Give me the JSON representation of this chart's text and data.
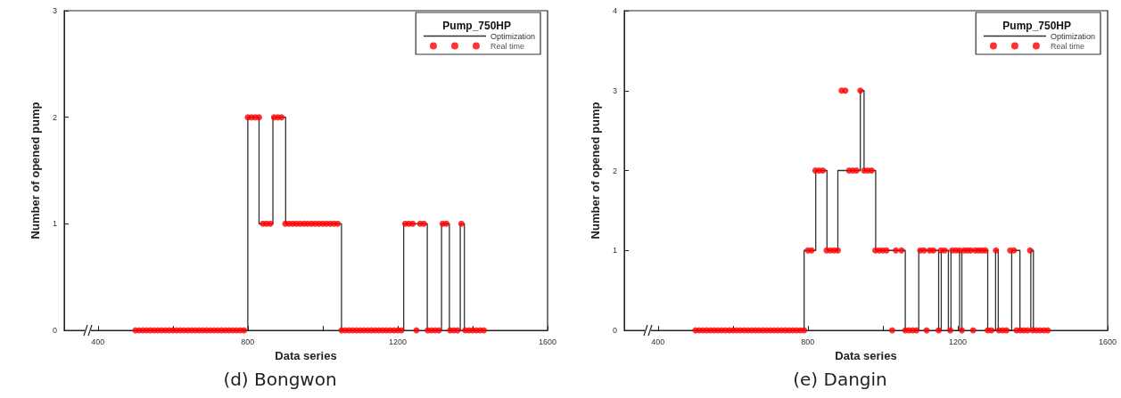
{
  "chart_data": [
    {
      "type": "line",
      "title": "(d) Bongwon",
      "xlabel": "Data series",
      "ylabel": "Number of opened pump",
      "legend_title": "Pump_750HP",
      "legend": "top right",
      "grid": false,
      "xlim": [
        310,
        1600
      ],
      "xticks": [
        400,
        {
          "value": 600,
          "label": null
        },
        800,
        {
          "value": 1000,
          "label": null
        },
        1200,
        {
          "value": 1400,
          "label": null
        },
        1600
      ],
      "ylim": [
        0,
        3
      ],
      "yticks": [
        0,
        1,
        2,
        3
      ],
      "series": [
        {
          "name": "Optimization",
          "type": "step",
          "color": "#333333",
          "line_style": "solid",
          "marker": "none",
          "x": [
            500,
            800,
            830,
            867,
            901,
            1050,
            1216,
            1279,
            1317,
            1338,
            1367,
            1378,
            1432
          ],
          "values": [
            0,
            2,
            1,
            2,
            1,
            0,
            1,
            0,
            1,
            0,
            1,
            0,
            0
          ]
        },
        {
          "name": "Real time",
          "type": "scatter",
          "color": "#ff0000",
          "marker": "circle",
          "x": [
            500,
            510,
            520,
            530,
            540,
            550,
            560,
            570,
            580,
            590,
            600,
            610,
            620,
            630,
            640,
            650,
            660,
            670,
            680,
            690,
            700,
            710,
            720,
            730,
            740,
            750,
            760,
            770,
            780,
            790,
            800,
            810,
            820,
            830,
            840,
            850,
            860,
            870,
            880,
            890,
            900,
            910,
            920,
            930,
            940,
            950,
            960,
            970,
            980,
            990,
            1000,
            1010,
            1020,
            1030,
            1040,
            1050,
            1060,
            1070,
            1080,
            1090,
            1100,
            1110,
            1120,
            1130,
            1140,
            1150,
            1160,
            1170,
            1180,
            1190,
            1200,
            1210,
            1220,
            1230,
            1240,
            1250,
            1260,
            1270,
            1280,
            1290,
            1300,
            1310,
            1320,
            1330,
            1340,
            1350,
            1360,
            1370,
            1380,
            1390,
            1400,
            1410,
            1420,
            1430
          ],
          "values": [
            0,
            0,
            0,
            0,
            0,
            0,
            0,
            0,
            0,
            0,
            0,
            0,
            0,
            0,
            0,
            0,
            0,
            0,
            0,
            0,
            0,
            0,
            0,
            0,
            0,
            0,
            0,
            0,
            0,
            0,
            2,
            2,
            2,
            2,
            1,
            1,
            1,
            2,
            2,
            2,
            1,
            1,
            1,
            1,
            1,
            1,
            1,
            1,
            1,
            1,
            1,
            1,
            1,
            1,
            1,
            0,
            0,
            0,
            0,
            0,
            0,
            0,
            0,
            0,
            0,
            0,
            0,
            0,
            0,
            0,
            0,
            0,
            1,
            1,
            1,
            0,
            1,
            1,
            0,
            0,
            0,
            0,
            1,
            1,
            0,
            0,
            0,
            1,
            0,
            0,
            0,
            0,
            0,
            0
          ]
        }
      ]
    },
    {
      "type": "line",
      "title": "(e) Dangin",
      "xlabel": "Data series",
      "ylabel": "Number of opened pump",
      "legend_title": "Pump_750HP",
      "legend": "top right",
      "grid": false,
      "xlim": [
        310,
        1600
      ],
      "xticks": [
        400,
        {
          "value": 600,
          "label": null
        },
        800,
        {
          "value": 1000,
          "label": null
        },
        1200,
        {
          "value": 1400,
          "label": null
        },
        1600
      ],
      "ylim": [
        0,
        4
      ],
      "yticks": [
        0,
        1,
        2,
        3,
        4
      ],
      "series": [
        {
          "name": "Optimization",
          "type": "step",
          "color": "#333333",
          "line_style": "solid",
          "marker": "none",
          "x": [
            500,
            790,
            821,
            851,
            880,
            940,
            950,
            981,
            1060,
            1096,
            1149,
            1156,
            1175,
            1182,
            1205,
            1211,
            1280,
            1301,
            1308,
            1344,
            1366,
            1395,
            1402,
            1444
          ],
          "values": [
            0,
            1,
            2,
            1,
            2,
            3,
            2,
            1,
            0,
            1,
            0,
            1,
            0,
            1,
            0,
            1,
            0,
            1,
            0,
            1,
            0,
            1,
            0,
            0
          ]
        },
        {
          "name": "Real time",
          "type": "scatter",
          "color": "#ff0000",
          "marker": "circle",
          "x": [
            500,
            510,
            520,
            530,
            540,
            550,
            560,
            570,
            580,
            590,
            600,
            610,
            620,
            630,
            640,
            650,
            660,
            670,
            680,
            690,
            700,
            710,
            720,
            730,
            740,
            750,
            760,
            770,
            780,
            790,
            800,
            810,
            820,
            830,
            840,
            850,
            860,
            870,
            880,
            890,
            900,
            910,
            920,
            930,
            940,
            950,
            960,
            970,
            980,
            990,
            1000,
            1010,
            1025,
            1035,
            1050,
            1060,
            1070,
            1080,
            1090,
            1100,
            1110,
            1117,
            1125,
            1135,
            1149,
            1155,
            1165,
            1180,
            1185,
            1195,
            1205,
            1211,
            1217,
            1226,
            1235,
            1241,
            1247,
            1256,
            1265,
            1274,
            1280,
            1290,
            1302,
            1310,
            1320,
            1330,
            1340,
            1350,
            1357,
            1367,
            1377,
            1387,
            1393,
            1400,
            1410,
            1420,
            1430,
            1440
          ],
          "values": [
            0,
            0,
            0,
            0,
            0,
            0,
            0,
            0,
            0,
            0,
            0,
            0,
            0,
            0,
            0,
            0,
            0,
            0,
            0,
            0,
            0,
            0,
            0,
            0,
            0,
            0,
            0,
            0,
            0,
            0,
            1,
            1,
            2,
            2,
            2,
            1,
            1,
            1,
            1,
            3,
            3,
            2,
            2,
            2,
            3,
            2,
            2,
            2,
            1,
            1,
            1,
            1,
            0,
            1,
            1,
            0,
            0,
            0,
            0,
            1,
            1,
            0,
            1,
            1,
            0,
            1,
            1,
            0,
            1,
            1,
            1,
            0,
            1,
            1,
            1,
            0,
            1,
            1,
            1,
            1,
            0,
            0,
            1,
            0,
            0,
            0,
            1,
            1,
            0,
            0,
            0,
            0,
            1,
            0,
            0,
            0,
            0,
            0
          ]
        }
      ]
    }
  ]
}
